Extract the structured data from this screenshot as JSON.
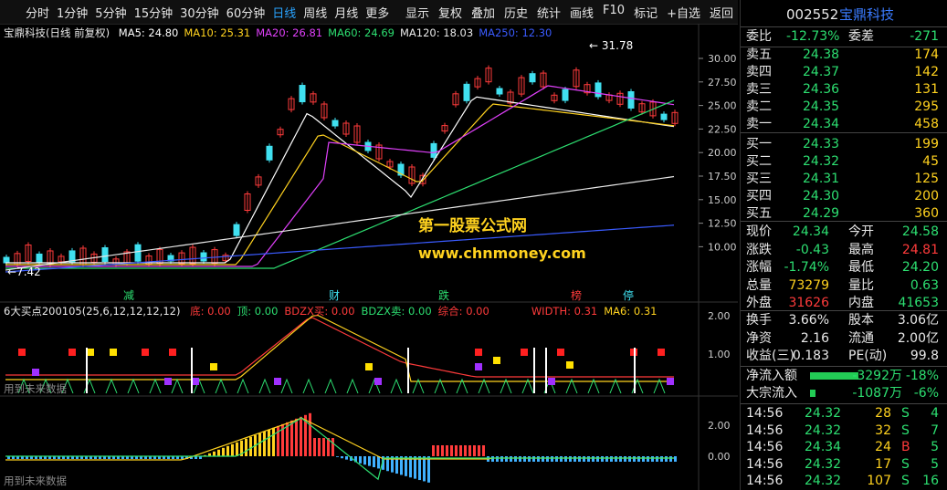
{
  "toolbar": {
    "periods": [
      "分时",
      "1分钟",
      "5分钟",
      "15分钟",
      "30分钟",
      "60分钟",
      "日线",
      "周线",
      "月线",
      "更多"
    ],
    "active_period": "日线",
    "actions": [
      "显示",
      "复权",
      "叠加",
      "历史",
      "统计",
      "画线",
      "F10",
      "标记",
      "+自选",
      "返回"
    ]
  },
  "main_chart": {
    "title": "宝鼎科技(日线 前复权)",
    "ma": [
      {
        "label": "MA5: 24.80",
        "color": "#ffffff"
      },
      {
        "label": "MA10: 25.31",
        "color": "#ffd21f"
      },
      {
        "label": "MA20: 26.81",
        "color": "#e040fb"
      },
      {
        "label": "MA60: 24.69",
        "color": "#2ddf71"
      },
      {
        "label": "MA120: 18.03",
        "color": "#e8e8e8"
      },
      {
        "label": "MA250: 12.30",
        "color": "#3a5bff"
      }
    ],
    "high_label": "31.78",
    "low_label": "7.42",
    "y_ticks": [
      "30.00",
      "27.50",
      "25.00",
      "22.50",
      "20.00",
      "17.50",
      "15.00",
      "12.50",
      "10.00"
    ],
    "event_marks": [
      "减",
      "财",
      "跌",
      "榜",
      "停"
    ],
    "watermark_cn": "第一股票公式网",
    "watermark_url": "www.chnmoney.com"
  },
  "indicator1": {
    "title": "6大买点200105(25,6,12,12,12,12)",
    "items": [
      {
        "label": "底: 0.00",
        "color": "#ff3b3b"
      },
      {
        "label": "顶: 0.00",
        "color": "#2ddf71"
      },
      {
        "label": "BDZX买: 0.00",
        "color": "#ff3b3b"
      },
      {
        "label": "BDZX卖: 0.00",
        "color": "#2ddf71"
      },
      {
        "label": "综合: 0.00",
        "color": "#ff3b3b"
      },
      {
        "label": "WIDTH: 0.31",
        "color": "#ff3b3b"
      },
      {
        "label": "MA6: 0.31",
        "color": "#ffd21f"
      }
    ],
    "y_ticks": [
      "2.00",
      "1.00"
    ],
    "note": "用到未来数据"
  },
  "indicator2": {
    "y_ticks": [
      "2.00",
      "0.00"
    ],
    "note": "用到未来数据"
  },
  "quote": {
    "code": "002552",
    "name": "宝鼎科技",
    "weibi_label": "委比",
    "weibi": "-12.73%",
    "weicha_label": "委差",
    "weicha": "-271",
    "asks": [
      {
        "label": "卖五",
        "price": "24.38",
        "vol": "174"
      },
      {
        "label": "卖四",
        "price": "24.37",
        "vol": "142"
      },
      {
        "label": "卖三",
        "price": "24.36",
        "vol": "131"
      },
      {
        "label": "卖二",
        "price": "24.35",
        "vol": "295"
      },
      {
        "label": "卖一",
        "price": "24.34",
        "vol": "458"
      }
    ],
    "bids": [
      {
        "label": "买一",
        "price": "24.33",
        "vol": "199"
      },
      {
        "label": "买二",
        "price": "24.32",
        "vol": "45"
      },
      {
        "label": "买三",
        "price": "24.31",
        "vol": "125"
      },
      {
        "label": "买四",
        "price": "24.30",
        "vol": "200"
      },
      {
        "label": "买五",
        "price": "24.29",
        "vol": "360"
      }
    ],
    "stats": [
      {
        "l1": "现价",
        "v1": "24.34",
        "c1": "g",
        "l2": "今开",
        "v2": "24.58",
        "c2": "g"
      },
      {
        "l1": "涨跌",
        "v1": "-0.43",
        "c1": "g",
        "l2": "最高",
        "v2": "24.81",
        "c2": "r"
      },
      {
        "l1": "涨幅",
        "v1": "-1.74%",
        "c1": "g",
        "l2": "最低",
        "v2": "24.20",
        "c2": "g"
      },
      {
        "l1": "总量",
        "v1": "73279",
        "c1": "y",
        "l2": "量比",
        "v2": "0.63",
        "c2": "g"
      },
      {
        "l1": "外盘",
        "v1": "31626",
        "c1": "r",
        "l2": "内盘",
        "v2": "41653",
        "c2": "g"
      }
    ],
    "stats2": [
      {
        "l1": "换手",
        "v1": "3.66%",
        "l2": "股本",
        "v2": "3.06亿"
      },
      {
        "l1": "净资",
        "v1": "2.16",
        "l2": "流通",
        "v2": "2.00亿"
      },
      {
        "l1": "收益(三)",
        "v1": "0.183",
        "l2": "PE(动)",
        "v2": "99.8"
      }
    ],
    "flows": [
      {
        "label": "净流入额",
        "value": "-3292万",
        "pct": "-18%",
        "bar": 0.74
      },
      {
        "label": "大宗流入",
        "value": "-1087万",
        "pct": "-6%",
        "bar": 0.08
      }
    ],
    "ticks": [
      {
        "time": "14:56",
        "price": "24.32",
        "vol": "28",
        "side": "S",
        "n": "4"
      },
      {
        "time": "14:56",
        "price": "24.32",
        "vol": "32",
        "side": "S",
        "n": "7"
      },
      {
        "time": "14:56",
        "price": "24.34",
        "vol": "24",
        "side": "B",
        "n": "5"
      },
      {
        "time": "14:56",
        "price": "24.32",
        "vol": "17",
        "side": "S",
        "n": "5"
      },
      {
        "time": "14:56",
        "price": "24.32",
        "vol": "107",
        "side": "S",
        "n": "16"
      }
    ]
  }
}
